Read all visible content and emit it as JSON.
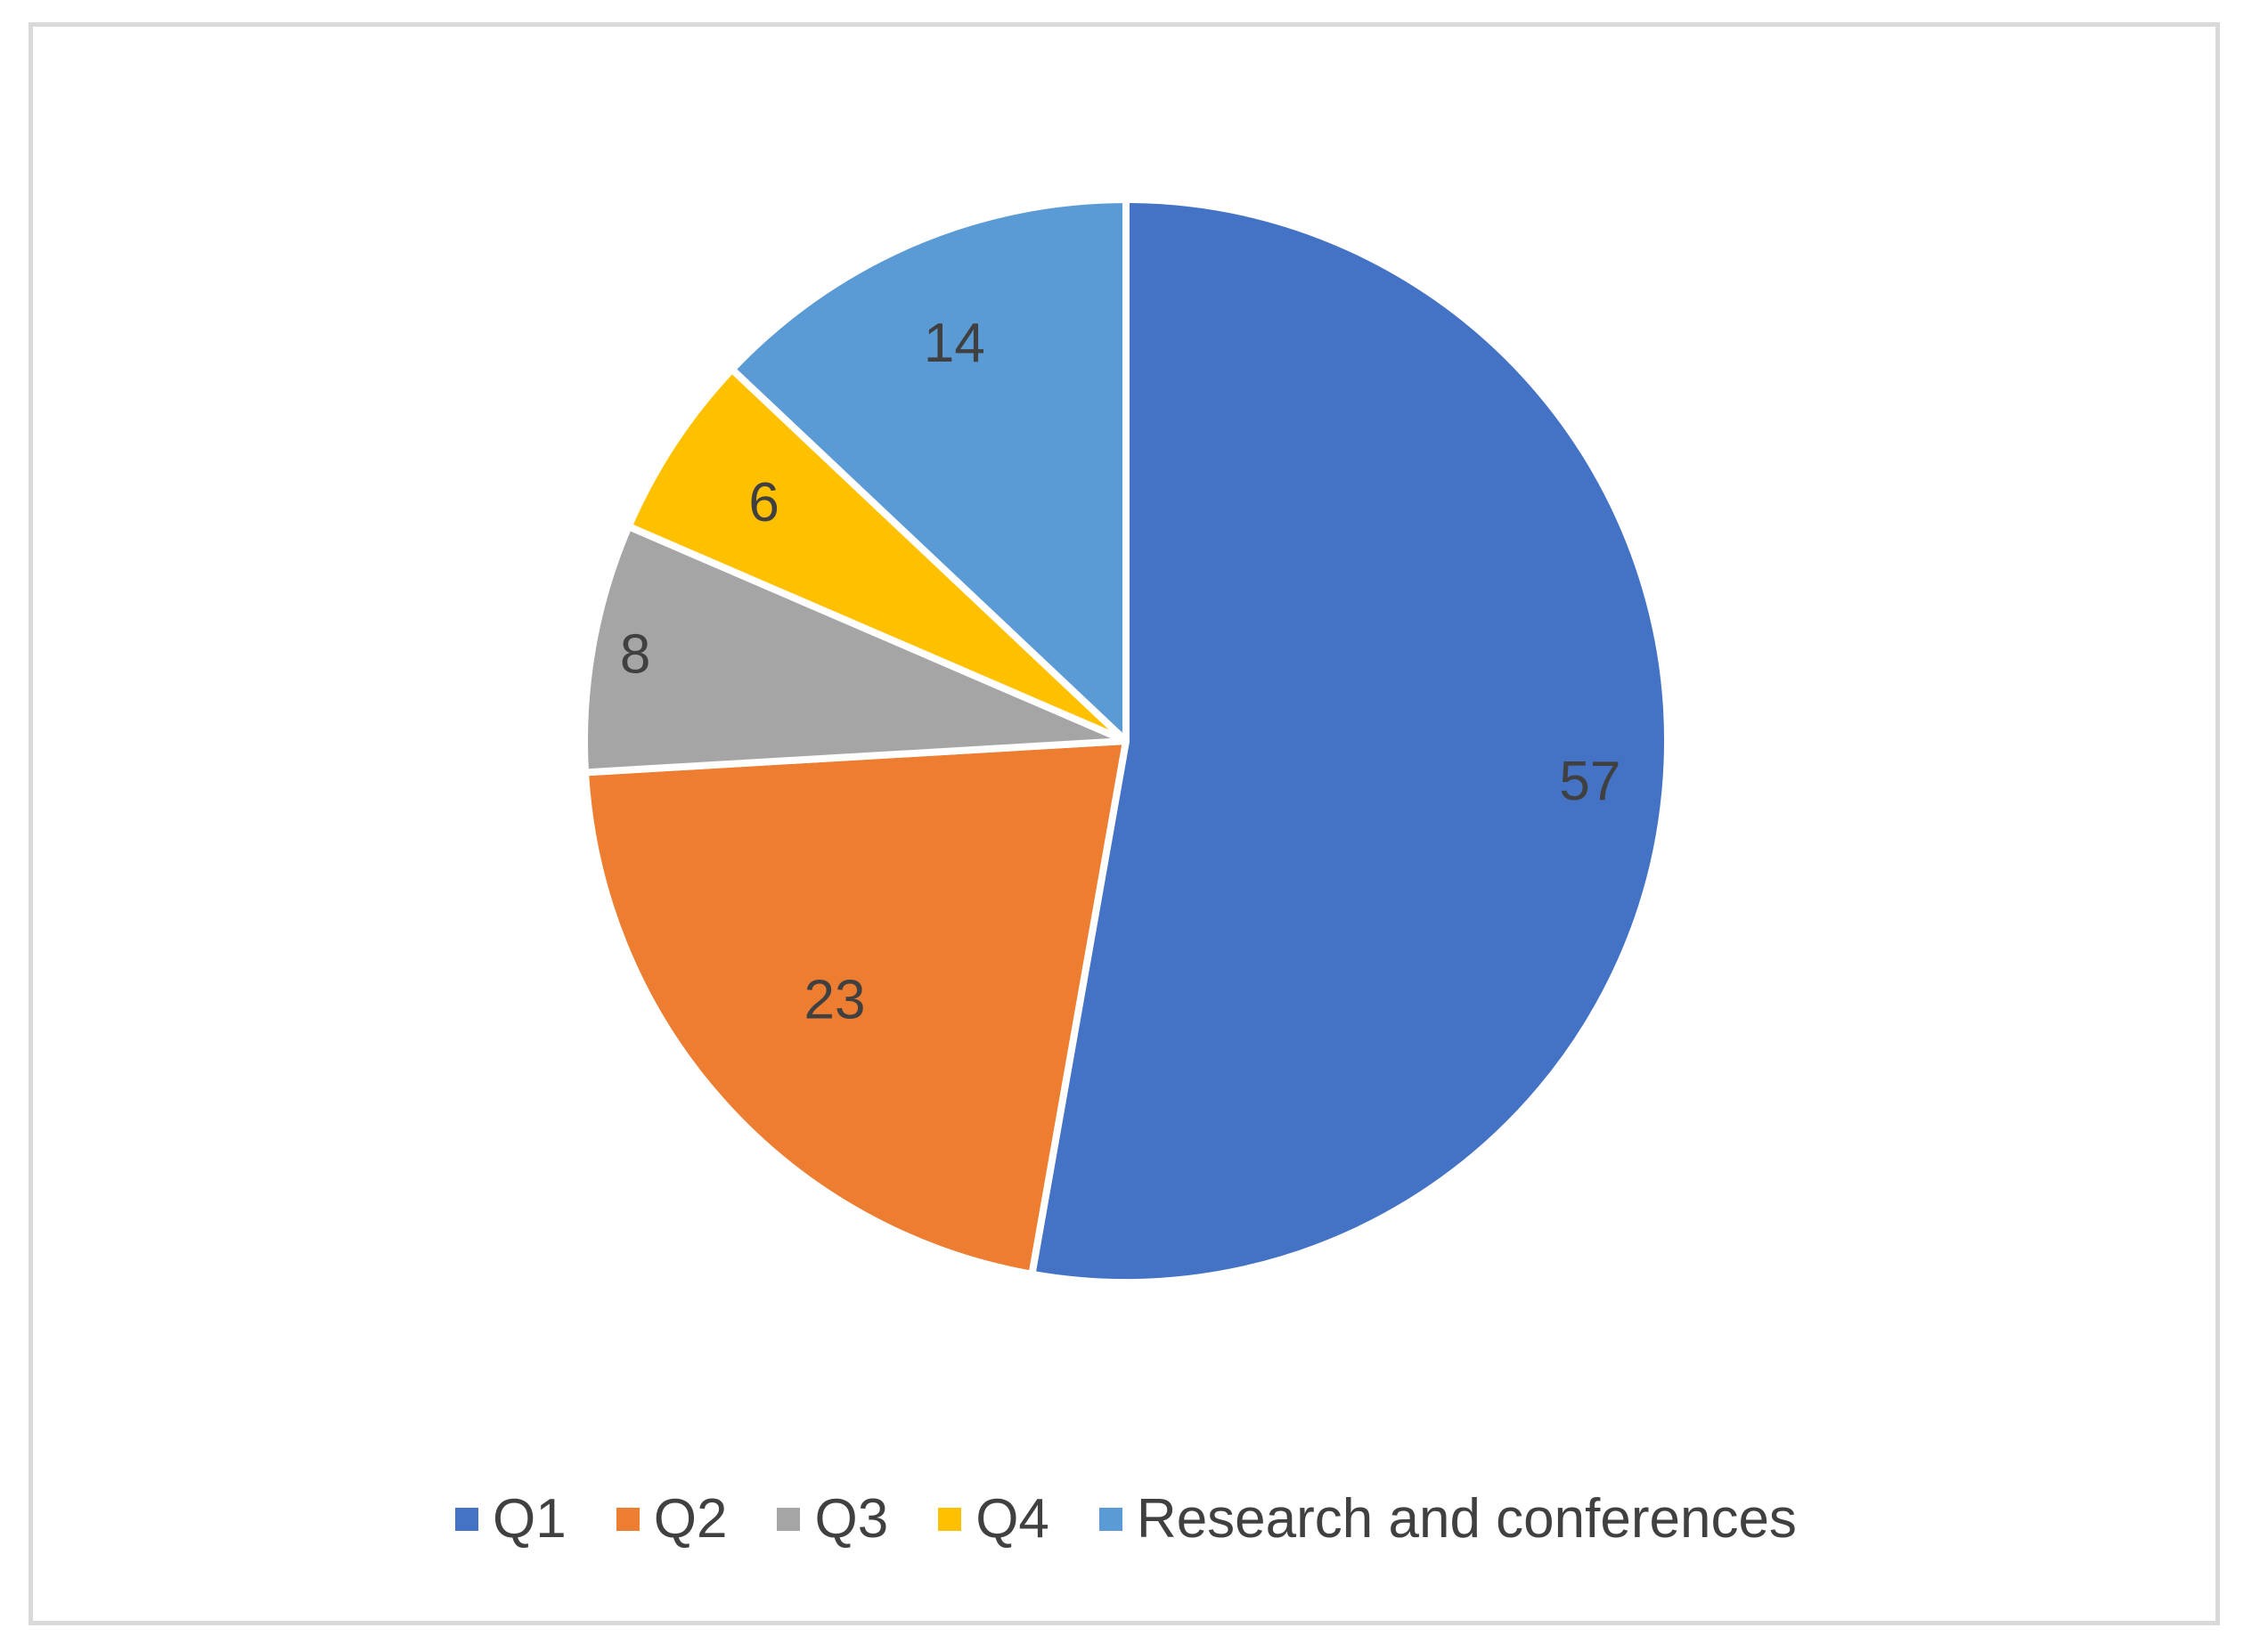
{
  "chart_data": {
    "type": "pie",
    "categories": [
      "Q1",
      "Q2",
      "Q3",
      "Q4",
      "Research and conferences"
    ],
    "values": [
      57,
      23,
      8,
      6,
      14
    ],
    "colors": [
      "#4472c4",
      "#ed7d31",
      "#a5a5a5",
      "#ffc000",
      "#5b9bd5"
    ],
    "legend_position": "bottom",
    "start_angle": "12 o'clock",
    "direction": "clockwise"
  }
}
